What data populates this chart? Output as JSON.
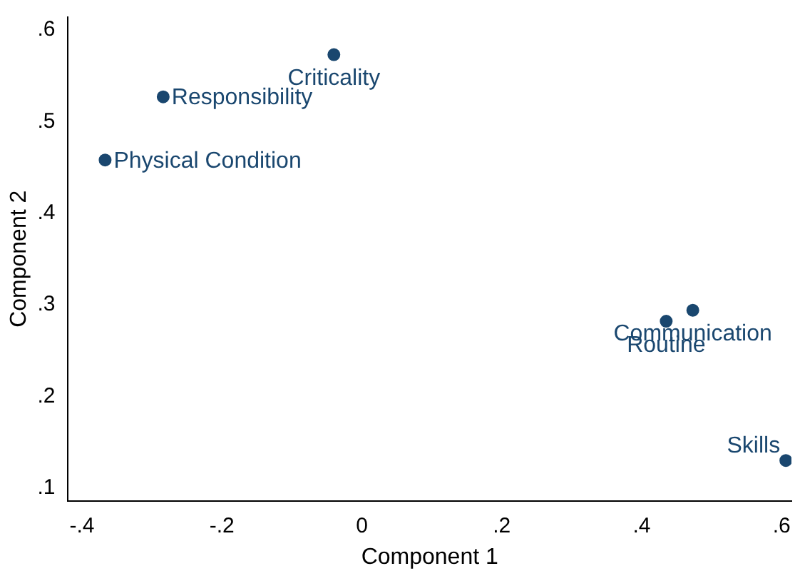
{
  "chart_data": {
    "type": "scatter",
    "xlabel": "Component 1",
    "ylabel": "Component 2",
    "series": [
      {
        "color": "#1a476f",
        "x": [
          -0.04,
          -0.284,
          -0.367,
          0.473,
          0.435,
          0.606
        ],
        "values": [
          0.573,
          0.527,
          0.458,
          0.294,
          0.282,
          0.13
        ]
      }
    ],
    "annotations": [
      {
        "text": "Criticality",
        "x": -0.04,
        "y": 0.573
      },
      {
        "text": "Responsibility",
        "x": -0.284,
        "y": 0.527
      },
      {
        "text": "Physical Condition",
        "x": -0.367,
        "y": 0.458
      },
      {
        "text": "Communication",
        "x": 0.473,
        "y": 0.294
      },
      {
        "text": "Routine",
        "x": 0.435,
        "y": 0.282
      },
      {
        "text": "Skills",
        "x": 0.606,
        "y": 0.13
      }
    ],
    "xlim": [
      -0.42,
      0.614
    ],
    "ylim": [
      0.086,
      0.614
    ],
    "xticks": [
      {
        "value": -0.4,
        "label": "-.4"
      },
      {
        "value": -0.2,
        "label": "-.2"
      },
      {
        "value": 0,
        "label": "0"
      },
      {
        "value": 0.2,
        "label": ".2"
      },
      {
        "value": 0.4,
        "label": ".4"
      },
      {
        "value": 0.6,
        "label": ".6"
      }
    ],
    "yticks": [
      {
        "value": 0.1,
        "label": ".1"
      },
      {
        "value": 0.2,
        "label": ".2"
      },
      {
        "value": 0.3,
        "label": ".3"
      },
      {
        "value": 0.4,
        "label": ".4"
      },
      {
        "value": 0.5,
        "label": ".5"
      },
      {
        "value": 0.6,
        "label": ".6"
      }
    ],
    "marker": "circle",
    "grid": false,
    "legend": false
  }
}
